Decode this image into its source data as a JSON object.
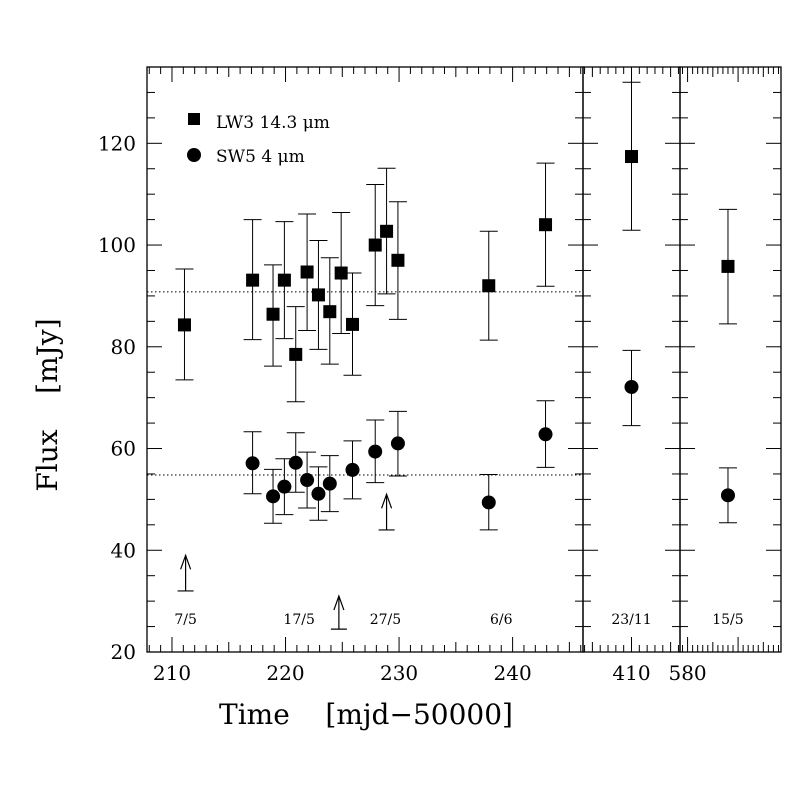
{
  "chart_data": {
    "type": "scatter",
    "ylabel": "Flux    [mJy]",
    "xlabel": "Time    [mjd−50000]",
    "ylim": [
      20,
      135
    ],
    "y_ticks": [
      "20",
      "40",
      "60",
      "80",
      "100",
      "120"
    ],
    "y_tick_values": [
      20,
      40,
      60,
      80,
      100,
      120
    ],
    "legend": [
      {
        "marker": "square",
        "label": "LW3 14.3 μm"
      },
      {
        "marker": "circle",
        "label": "SW5 4 μm"
      }
    ],
    "panels": [
      {
        "name": "main",
        "xlim": [
          207.8,
          246.2
        ],
        "x_ticks": [
          "210",
          "220",
          "230",
          "240"
        ],
        "x_tick_values": [
          210,
          220,
          230,
          240
        ],
        "date_labels": [
          {
            "x": 211.2,
            "text": "7/5"
          },
          {
            "x": 221.2,
            "text": "17/5"
          },
          {
            "x": 228.8,
            "text": "27/5"
          },
          {
            "x": 239.0,
            "text": "6/6"
          }
        ],
        "arrows": [
          {
            "x": 211.2,
            "y_from": 32,
            "y_to": 39
          },
          {
            "x": 224.7,
            "y_from": 24.5,
            "y_to": 31
          },
          {
            "x": 228.9,
            "y_from": 44,
            "y_to": 51
          }
        ],
        "hlines": [
          90.8,
          54.8
        ],
        "series": [
          {
            "name": "LW3 14.3 μm",
            "marker": "square",
            "points": [
              {
                "x": 211.1,
                "y": 84.3,
                "lo": 73.5,
                "hi": 95.3
              },
              {
                "x": 217.1,
                "y": 93.1,
                "lo": 81.4,
                "hi": 105.0
              },
              {
                "x": 218.9,
                "y": 86.4,
                "lo": 76.2,
                "hi": 96.1
              },
              {
                "x": 219.9,
                "y": 93.1,
                "lo": 81.6,
                "hi": 104.6
              },
              {
                "x": 220.9,
                "y": 78.5,
                "lo": 69.2,
                "hi": 87.9
              },
              {
                "x": 221.9,
                "y": 94.7,
                "lo": 83.2,
                "hi": 106.1
              },
              {
                "x": 222.9,
                "y": 90.2,
                "lo": 79.5,
                "hi": 100.9
              },
              {
                "x": 223.9,
                "y": 86.9,
                "lo": 76.6,
                "hi": 97.5
              },
              {
                "x": 224.9,
                "y": 94.5,
                "lo": 82.6,
                "hi": 106.4
              },
              {
                "x": 225.9,
                "y": 84.4,
                "lo": 74.4,
                "hi": 94.5
              },
              {
                "x": 227.9,
                "y": 100.0,
                "lo": 88.1,
                "hi": 111.9
              },
              {
                "x": 228.9,
                "y": 102.7,
                "lo": 90.4,
                "hi": 115.1
              },
              {
                "x": 229.9,
                "y": 97.0,
                "lo": 85.4,
                "hi": 108.5
              },
              {
                "x": 237.9,
                "y": 92.0,
                "lo": 81.3,
                "hi": 102.7
              },
              {
                "x": 242.9,
                "y": 104.0,
                "lo": 91.9,
                "hi": 116.1
              }
            ]
          },
          {
            "name": "SW5 4 μm",
            "marker": "circle",
            "points": [
              {
                "x": 217.1,
                "y": 57.1,
                "lo": 51.1,
                "hi": 63.3
              },
              {
                "x": 218.9,
                "y": 50.6,
                "lo": 45.3,
                "hi": 55.9
              },
              {
                "x": 219.9,
                "y": 52.5,
                "lo": 47.0,
                "hi": 58.0
              },
              {
                "x": 220.9,
                "y": 57.2,
                "lo": 51.4,
                "hi": 63.1
              },
              {
                "x": 221.9,
                "y": 53.8,
                "lo": 48.3,
                "hi": 59.3
              },
              {
                "x": 222.9,
                "y": 51.1,
                "lo": 45.9,
                "hi": 56.4
              },
              {
                "x": 223.9,
                "y": 53.1,
                "lo": 47.6,
                "hi": 58.6
              },
              {
                "x": 225.9,
                "y": 55.8,
                "lo": 50.1,
                "hi": 61.5
              },
              {
                "x": 227.9,
                "y": 59.4,
                "lo": 53.3,
                "hi": 65.6
              },
              {
                "x": 229.9,
                "y": 61.0,
                "lo": 54.6,
                "hi": 67.3
              },
              {
                "x": 237.9,
                "y": 49.4,
                "lo": 44.0,
                "hi": 54.9
              },
              {
                "x": 242.9,
                "y": 62.8,
                "lo": 56.3,
                "hi": 69.4
              }
            ]
          }
        ]
      },
      {
        "name": "panel-23-11",
        "xlim": [
          403.8,
          416.2
        ],
        "x_ticks": [
          "410"
        ],
        "x_tick_values": [
          410
        ],
        "date_labels": [
          {
            "x": 410.0,
            "text": "23/11"
          }
        ],
        "arrows": [],
        "hlines": [],
        "series": [
          {
            "name": "LW3 14.3 μm",
            "marker": "square",
            "points": [
              {
                "x": 410.0,
                "y": 117.4,
                "lo": 102.9,
                "hi": 132.0
              }
            ]
          },
          {
            "name": "SW5 4 μm",
            "marker": "circle",
            "points": [
              {
                "x": 410.0,
                "y": 72.1,
                "lo": 64.5,
                "hi": 79.3
              }
            ]
          }
        ]
      },
      {
        "name": "panel-15-5",
        "xlim": [
          578.5,
          598.5
        ],
        "x_ticks": [
          "580"
        ],
        "x_tick_values": [
          580
        ],
        "date_labels": [
          {
            "x": 588.0,
            "text": "15/5"
          }
        ],
        "arrows": [],
        "hlines": [],
        "series": [
          {
            "name": "LW3 14.3 μm",
            "marker": "square",
            "points": [
              {
                "x": 588.0,
                "y": 95.8,
                "lo": 84.5,
                "hi": 107.0
              }
            ]
          },
          {
            "name": "SW5 4 μm",
            "marker": "circle",
            "points": [
              {
                "x": 588.0,
                "y": 50.8,
                "lo": 45.4,
                "hi": 56.2
              }
            ]
          }
        ]
      }
    ]
  }
}
